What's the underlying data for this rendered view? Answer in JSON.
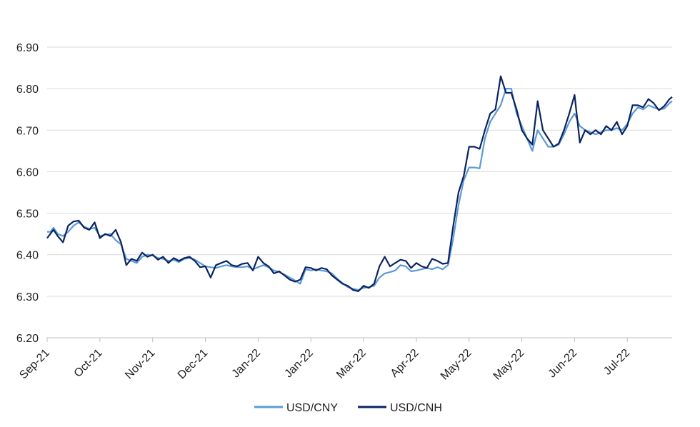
{
  "chart_data": {
    "type": "line",
    "title": "",
    "xlabel": "",
    "ylabel": "",
    "ylim": [
      6.2,
      6.9
    ],
    "yticks": [
      "6.20",
      "6.30",
      "6.40",
      "6.50",
      "6.60",
      "6.70",
      "6.80",
      "6.90"
    ],
    "xticks": [
      "Sep-21",
      "Oct-21",
      "Nov-21",
      "Dec-21",
      "Jan-22",
      "Jan-22",
      "Mar-22",
      "Apr-22",
      "May-22",
      "May-22",
      "Jun-22",
      "Jul-22"
    ],
    "grid": true,
    "legend": "bottom-center",
    "colors": {
      "USD/CNY": "#5b9bd5",
      "USD/CNH": "#0b2361"
    },
    "series": [
      {
        "name": "USD/CNY",
        "values": [
          [
            0.0,
            6.455
          ],
          [
            0.06,
            6.455
          ],
          [
            0.12,
            6.465
          ],
          [
            0.2,
            6.45
          ],
          [
            0.3,
            6.445
          ],
          [
            0.4,
            6.455
          ],
          [
            0.5,
            6.47
          ],
          [
            0.6,
            6.478
          ],
          [
            0.7,
            6.468
          ],
          [
            0.8,
            6.462
          ],
          [
            0.9,
            6.465
          ],
          [
            1.0,
            6.445
          ],
          [
            1.1,
            6.448
          ],
          [
            1.2,
            6.45
          ],
          [
            1.3,
            6.435
          ],
          [
            1.4,
            6.425
          ],
          [
            1.5,
            6.39
          ],
          [
            1.6,
            6.385
          ],
          [
            1.7,
            6.38
          ],
          [
            1.8,
            6.395
          ],
          [
            1.9,
            6.4
          ],
          [
            2.0,
            6.398
          ],
          [
            2.1,
            6.392
          ],
          [
            2.2,
            6.39
          ],
          [
            2.3,
            6.385
          ],
          [
            2.4,
            6.388
          ],
          [
            2.5,
            6.382
          ],
          [
            2.6,
            6.39
          ],
          [
            2.7,
            6.392
          ],
          [
            2.8,
            6.388
          ],
          [
            2.9,
            6.38
          ],
          [
            3.0,
            6.372
          ],
          [
            3.1,
            6.37
          ],
          [
            3.2,
            6.368
          ],
          [
            3.3,
            6.372
          ],
          [
            3.4,
            6.375
          ],
          [
            3.5,
            6.372
          ],
          [
            3.6,
            6.37
          ],
          [
            3.7,
            6.37
          ],
          [
            3.8,
            6.372
          ],
          [
            3.9,
            6.365
          ],
          [
            4.0,
            6.37
          ],
          [
            4.1,
            6.375
          ],
          [
            4.2,
            6.37
          ],
          [
            4.3,
            6.362
          ],
          [
            4.4,
            6.358
          ],
          [
            4.5,
            6.352
          ],
          [
            4.6,
            6.345
          ],
          [
            4.7,
            6.338
          ],
          [
            4.8,
            6.33
          ],
          [
            4.9,
            6.365
          ],
          [
            5.0,
            6.362
          ],
          [
            5.1,
            6.365
          ],
          [
            5.2,
            6.362
          ],
          [
            5.3,
            6.36
          ],
          [
            5.4,
            6.355
          ],
          [
            5.5,
            6.342
          ],
          [
            5.6,
            6.332
          ],
          [
            5.7,
            6.322
          ],
          [
            5.8,
            6.318
          ],
          [
            5.9,
            6.315
          ],
          [
            6.0,
            6.32
          ],
          [
            6.1,
            6.322
          ],
          [
            6.2,
            6.325
          ],
          [
            6.3,
            6.345
          ],
          [
            6.4,
            6.355
          ],
          [
            6.5,
            6.358
          ],
          [
            6.6,
            6.362
          ],
          [
            6.7,
            6.375
          ],
          [
            6.8,
            6.372
          ],
          [
            6.9,
            6.36
          ],
          [
            7.0,
            6.362
          ],
          [
            7.1,
            6.365
          ],
          [
            7.2,
            6.368
          ],
          [
            7.3,
            6.365
          ],
          [
            7.4,
            6.37
          ],
          [
            7.5,
            6.365
          ],
          [
            7.6,
            6.375
          ],
          [
            7.7,
            6.44
          ],
          [
            7.8,
            6.52
          ],
          [
            7.9,
            6.58
          ],
          [
            8.0,
            6.61
          ],
          [
            8.1,
            6.61
          ],
          [
            8.2,
            6.608
          ],
          [
            8.3,
            6.68
          ],
          [
            8.4,
            6.72
          ],
          [
            8.5,
            6.74
          ],
          [
            8.6,
            6.76
          ],
          [
            8.7,
            6.8
          ],
          [
            8.8,
            6.8
          ],
          [
            8.9,
            6.74
          ],
          [
            9.0,
            6.71
          ],
          [
            9.1,
            6.68
          ],
          [
            9.2,
            6.65
          ],
          [
            9.3,
            6.7
          ],
          [
            9.4,
            6.68
          ],
          [
            9.5,
            6.66
          ],
          [
            9.6,
            6.66
          ],
          [
            9.7,
            6.665
          ],
          [
            9.8,
            6.69
          ],
          [
            9.9,
            6.72
          ],
          [
            10.0,
            6.74
          ],
          [
            10.1,
            6.71
          ],
          [
            10.2,
            6.7
          ],
          [
            10.3,
            6.695
          ],
          [
            10.4,
            6.69
          ],
          [
            10.5,
            6.695
          ],
          [
            10.6,
            6.7
          ],
          [
            10.7,
            6.7
          ],
          [
            10.8,
            6.705
          ],
          [
            10.9,
            6.7
          ],
          [
            11.0,
            6.715
          ],
          [
            11.1,
            6.74
          ],
          [
            11.2,
            6.755
          ],
          [
            11.3,
            6.75
          ],
          [
            11.4,
            6.76
          ],
          [
            11.5,
            6.755
          ],
          [
            11.6,
            6.75
          ],
          [
            11.7,
            6.752
          ],
          [
            11.8,
            6.765
          ],
          [
            11.85,
            6.77
          ]
        ]
      },
      {
        "name": "USD/CNH",
        "values": [
          [
            0.0,
            6.44
          ],
          [
            0.06,
            6.45
          ],
          [
            0.12,
            6.46
          ],
          [
            0.2,
            6.445
          ],
          [
            0.3,
            6.43
          ],
          [
            0.4,
            6.47
          ],
          [
            0.5,
            6.48
          ],
          [
            0.6,
            6.482
          ],
          [
            0.7,
            6.465
          ],
          [
            0.8,
            6.46
          ],
          [
            0.9,
            6.478
          ],
          [
            1.0,
            6.44
          ],
          [
            1.1,
            6.45
          ],
          [
            1.2,
            6.445
          ],
          [
            1.3,
            6.46
          ],
          [
            1.4,
            6.43
          ],
          [
            1.5,
            6.375
          ],
          [
            1.6,
            6.39
          ],
          [
            1.7,
            6.385
          ],
          [
            1.8,
            6.405
          ],
          [
            1.9,
            6.395
          ],
          [
            2.0,
            6.4
          ],
          [
            2.1,
            6.388
          ],
          [
            2.2,
            6.395
          ],
          [
            2.3,
            6.38
          ],
          [
            2.4,
            6.392
          ],
          [
            2.5,
            6.385
          ],
          [
            2.6,
            6.392
          ],
          [
            2.7,
            6.395
          ],
          [
            2.8,
            6.385
          ],
          [
            2.9,
            6.37
          ],
          [
            3.0,
            6.372
          ],
          [
            3.1,
            6.345
          ],
          [
            3.2,
            6.375
          ],
          [
            3.3,
            6.38
          ],
          [
            3.4,
            6.385
          ],
          [
            3.5,
            6.375
          ],
          [
            3.6,
            6.372
          ],
          [
            3.7,
            6.378
          ],
          [
            3.8,
            6.38
          ],
          [
            3.9,
            6.362
          ],
          [
            4.0,
            6.395
          ],
          [
            4.1,
            6.38
          ],
          [
            4.2,
            6.372
          ],
          [
            4.3,
            6.355
          ],
          [
            4.4,
            6.36
          ],
          [
            4.5,
            6.35
          ],
          [
            4.6,
            6.34
          ],
          [
            4.7,
            6.335
          ],
          [
            4.8,
            6.34
          ],
          [
            4.9,
            6.37
          ],
          [
            5.0,
            6.368
          ],
          [
            5.1,
            6.362
          ],
          [
            5.2,
            6.368
          ],
          [
            5.3,
            6.365
          ],
          [
            5.4,
            6.35
          ],
          [
            5.5,
            6.34
          ],
          [
            5.6,
            6.33
          ],
          [
            5.7,
            6.325
          ],
          [
            5.8,
            6.315
          ],
          [
            5.9,
            6.312
          ],
          [
            6.0,
            6.325
          ],
          [
            6.1,
            6.32
          ],
          [
            6.2,
            6.33
          ],
          [
            6.3,
            6.372
          ],
          [
            6.4,
            6.395
          ],
          [
            6.5,
            6.372
          ],
          [
            6.6,
            6.38
          ],
          [
            6.7,
            6.388
          ],
          [
            6.8,
            6.385
          ],
          [
            6.9,
            6.368
          ],
          [
            7.0,
            6.38
          ],
          [
            7.1,
            6.372
          ],
          [
            7.2,
            6.368
          ],
          [
            7.3,
            6.39
          ],
          [
            7.4,
            6.385
          ],
          [
            7.5,
            6.378
          ],
          [
            7.6,
            6.38
          ],
          [
            7.7,
            6.47
          ],
          [
            7.8,
            6.55
          ],
          [
            7.9,
            6.59
          ],
          [
            8.0,
            6.66
          ],
          [
            8.1,
            6.66
          ],
          [
            8.2,
            6.655
          ],
          [
            8.3,
            6.7
          ],
          [
            8.4,
            6.74
          ],
          [
            8.5,
            6.75
          ],
          [
            8.6,
            6.83
          ],
          [
            8.7,
            6.79
          ],
          [
            8.8,
            6.79
          ],
          [
            8.9,
            6.75
          ],
          [
            9.0,
            6.7
          ],
          [
            9.1,
            6.68
          ],
          [
            9.2,
            6.665
          ],
          [
            9.3,
            6.77
          ],
          [
            9.4,
            6.7
          ],
          [
            9.5,
            6.68
          ],
          [
            9.6,
            6.66
          ],
          [
            9.7,
            6.668
          ],
          [
            9.8,
            6.7
          ],
          [
            9.9,
            6.74
          ],
          [
            10.0,
            6.785
          ],
          [
            10.1,
            6.67
          ],
          [
            10.2,
            6.7
          ],
          [
            10.3,
            6.69
          ],
          [
            10.4,
            6.7
          ],
          [
            10.5,
            6.69
          ],
          [
            10.6,
            6.71
          ],
          [
            10.7,
            6.7
          ],
          [
            10.8,
            6.72
          ],
          [
            10.9,
            6.69
          ],
          [
            11.0,
            6.71
          ],
          [
            11.1,
            6.76
          ],
          [
            11.2,
            6.76
          ],
          [
            11.3,
            6.755
          ],
          [
            11.4,
            6.775
          ],
          [
            11.5,
            6.765
          ],
          [
            11.6,
            6.748
          ],
          [
            11.7,
            6.758
          ],
          [
            11.8,
            6.775
          ],
          [
            11.85,
            6.78
          ]
        ]
      }
    ]
  }
}
